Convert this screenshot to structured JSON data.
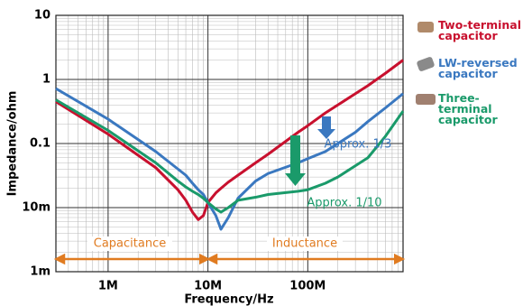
{
  "chart_data": {
    "type": "line",
    "x_label": "Frequency/Hz",
    "y_label": "Impedance/ohm",
    "log_x": true,
    "log_y": true,
    "grid": true,
    "xlim": [
      300000,
      900000000
    ],
    "xticks": [
      {
        "value": 1000000,
        "label": "1M"
      },
      {
        "value": 10000000,
        "label": "10M"
      },
      {
        "value": 100000000,
        "label": "100M"
      }
    ],
    "ylim": [
      0.001,
      10
    ],
    "yticks": [
      {
        "value": 0.001,
        "label": "1m"
      },
      {
        "value": 0.01,
        "label": "10m"
      },
      0.1,
      1,
      10
    ],
    "x": [
      300000,
      1000000,
      3000000,
      5000000,
      6000000,
      7000000,
      8000000,
      9000000,
      10000000,
      12000000,
      13500000,
      16000000,
      20000000,
      30000000,
      40000000,
      80000000,
      100000000,
      150000000,
      200000000,
      300000000,
      400000000,
      600000000,
      900000000
    ],
    "series": [
      {
        "name": "Two-terminal capacitor",
        "color": "#c8102e",
        "values": [
          0.45,
          0.14,
          0.042,
          0.019,
          0.013,
          0.0085,
          0.0065,
          0.0075,
          0.012,
          0.017,
          0.02,
          0.025,
          0.032,
          0.05,
          0.068,
          0.15,
          0.19,
          0.3,
          0.4,
          0.6,
          0.8,
          1.25,
          2.0
        ]
      },
      {
        "name": "LW-reversed capacitor",
        "color": "#3a78c0",
        "values": [
          0.72,
          0.24,
          0.075,
          0.04,
          0.032,
          0.024,
          0.019,
          0.016,
          0.012,
          0.0075,
          0.0046,
          0.007,
          0.014,
          0.026,
          0.034,
          0.05,
          0.058,
          0.075,
          0.1,
          0.15,
          0.22,
          0.36,
          0.6
        ]
      },
      {
        "name": "Three-terminal capacitor",
        "color": "#1a9a6a",
        "values": [
          0.48,
          0.16,
          0.05,
          0.026,
          0.021,
          0.018,
          0.016,
          0.014,
          0.012,
          0.0095,
          0.0085,
          0.01,
          0.013,
          0.0145,
          0.016,
          0.018,
          0.019,
          0.024,
          0.03,
          0.045,
          0.06,
          0.13,
          0.32
        ]
      }
    ],
    "annotations": [
      "Approx. 1/3",
      "Approx. 1/10",
      "Capacitance",
      "Inductance"
    ]
  }
}
